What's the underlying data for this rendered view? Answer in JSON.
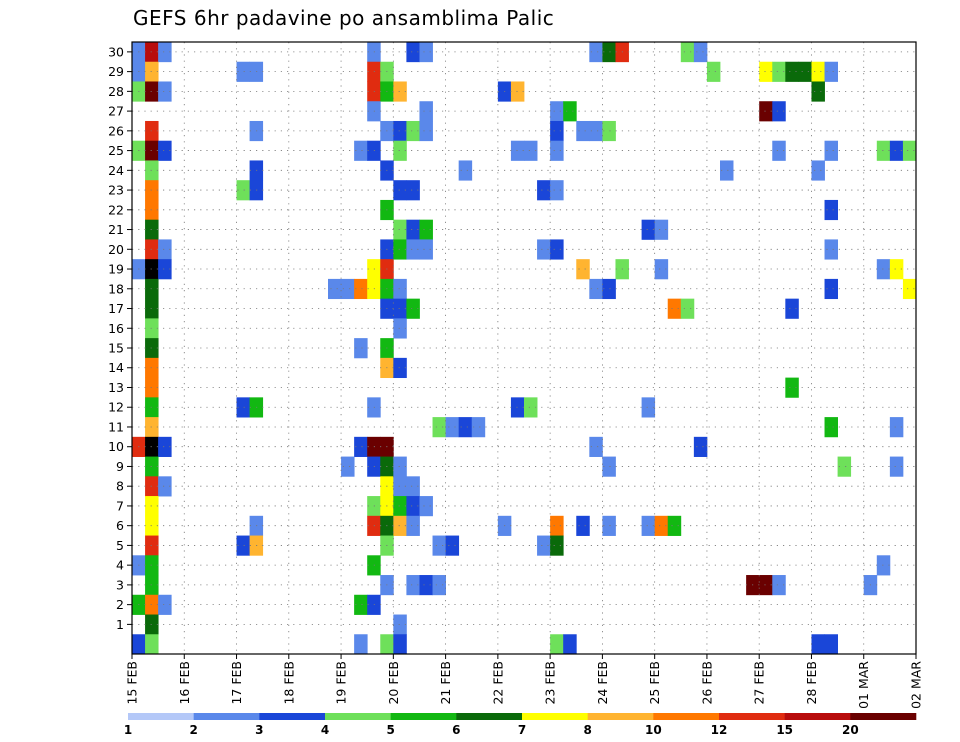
{
  "chart_data": {
    "type": "heatmap",
    "title": "GEFS 6hr padavine po ansamblima Palic",
    "xlabel": "",
    "ylabel": "",
    "y_ticks": [
      "1",
      "2",
      "3",
      "4",
      "5",
      "6",
      "7",
      "8",
      "9",
      "10",
      "11",
      "12",
      "13",
      "14",
      "15",
      "16",
      "17",
      "18",
      "19",
      "20",
      "21",
      "22",
      "23",
      "24",
      "25",
      "26",
      "27",
      "28",
      "29",
      "30"
    ],
    "x_ticks": [
      "15 FEB",
      "16 FEB",
      "17 FEB",
      "18 FEB",
      "19 FEB",
      "20 FEB",
      "21 FEB",
      "22 FEB",
      "23 FEB",
      "24 FEB",
      "25 FEB",
      "26 FEB",
      "27 FEB",
      "28 FEB",
      "01 MAR",
      "02 MAR"
    ],
    "xlim_steps": [
      0,
      60
    ],
    "ylim": [
      0,
      30
    ],
    "grid": true,
    "colorbar": {
      "levels": [
        "1",
        "2",
        "3",
        "4",
        "5",
        "6",
        "7",
        "8",
        "10",
        "12",
        "15",
        "20"
      ],
      "colors": [
        "#b4c8f8",
        "#5a88ea",
        "#1a46d8",
        "#6ee05a",
        "#12b812",
        "#0a6a0a",
        "#ffff00",
        "#ffb430",
        "#ff7800",
        "#e02c10",
        "#b80c0c",
        "#6a0000"
      ]
    },
    "cells": [
      [
        0,
        30,
        1
      ],
      [
        1,
        30,
        10
      ],
      [
        2,
        30,
        1
      ],
      [
        18,
        30,
        1
      ],
      [
        21,
        30,
        2
      ],
      [
        22,
        30,
        1
      ],
      [
        35,
        30,
        1
      ],
      [
        36,
        30,
        5
      ],
      [
        37,
        30,
        9
      ],
      [
        42,
        30,
        3
      ],
      [
        43,
        30,
        1
      ],
      [
        0,
        29,
        1
      ],
      [
        1,
        29,
        7
      ],
      [
        8,
        29,
        1
      ],
      [
        9,
        29,
        1
      ],
      [
        18,
        29,
        9
      ],
      [
        19,
        29,
        3
      ],
      [
        44,
        29,
        3
      ],
      [
        48,
        29,
        6
      ],
      [
        49,
        29,
        3
      ],
      [
        50,
        29,
        5
      ],
      [
        51,
        29,
        5
      ],
      [
        52,
        29,
        6
      ],
      [
        53,
        29,
        1
      ],
      [
        0,
        28,
        3
      ],
      [
        1,
        28,
        11
      ],
      [
        2,
        28,
        1
      ],
      [
        18,
        28,
        9
      ],
      [
        19,
        28,
        4
      ],
      [
        20,
        28,
        7
      ],
      [
        28,
        28,
        2
      ],
      [
        29,
        28,
        7
      ],
      [
        52,
        28,
        5
      ],
      [
        18,
        27,
        1
      ],
      [
        22,
        27,
        1
      ],
      [
        32,
        27,
        1
      ],
      [
        33,
        27,
        4
      ],
      [
        48,
        27,
        11
      ],
      [
        49,
        27,
        2
      ],
      [
        1,
        26,
        9
      ],
      [
        9,
        26,
        1
      ],
      [
        19,
        26,
        1
      ],
      [
        20,
        26,
        2
      ],
      [
        21,
        26,
        3
      ],
      [
        22,
        26,
        1
      ],
      [
        32,
        26,
        2
      ],
      [
        34,
        26,
        1
      ],
      [
        35,
        26,
        1
      ],
      [
        36,
        26,
        3
      ],
      [
        0,
        25,
        3
      ],
      [
        1,
        25,
        11
      ],
      [
        2,
        25,
        2
      ],
      [
        17,
        25,
        1
      ],
      [
        18,
        25,
        2
      ],
      [
        20,
        25,
        3
      ],
      [
        29,
        25,
        1
      ],
      [
        30,
        25,
        1
      ],
      [
        32,
        25,
        1
      ],
      [
        49,
        25,
        1
      ],
      [
        53,
        25,
        1
      ],
      [
        57,
        25,
        3
      ],
      [
        58,
        25,
        2
      ],
      [
        59,
        25,
        3
      ],
      [
        1,
        24,
        3
      ],
      [
        9,
        24,
        2
      ],
      [
        19,
        24,
        2
      ],
      [
        25,
        24,
        1
      ],
      [
        45,
        24,
        1
      ],
      [
        52,
        24,
        1
      ],
      [
        1,
        23,
        8
      ],
      [
        8,
        23,
        3
      ],
      [
        9,
        23,
        2
      ],
      [
        20,
        23,
        2
      ],
      [
        21,
        23,
        2
      ],
      [
        31,
        23,
        2
      ],
      [
        32,
        23,
        1
      ],
      [
        1,
        22,
        8
      ],
      [
        19,
        22,
        4
      ],
      [
        53,
        22,
        2
      ],
      [
        1,
        21,
        5
      ],
      [
        20,
        21,
        3
      ],
      [
        21,
        21,
        2
      ],
      [
        22,
        21,
        4
      ],
      [
        39,
        21,
        2
      ],
      [
        40,
        21,
        1
      ],
      [
        1,
        20,
        9
      ],
      [
        2,
        20,
        1
      ],
      [
        19,
        20,
        2
      ],
      [
        20,
        20,
        4
      ],
      [
        21,
        20,
        1
      ],
      [
        22,
        20,
        1
      ],
      [
        31,
        20,
        1
      ],
      [
        32,
        20,
        2
      ],
      [
        53,
        20,
        1
      ],
      [
        0,
        19,
        1
      ],
      [
        1,
        19,
        12
      ],
      [
        2,
        19,
        2
      ],
      [
        18,
        19,
        6
      ],
      [
        19,
        19,
        9
      ],
      [
        34,
        19,
        7
      ],
      [
        37,
        19,
        3
      ],
      [
        40,
        19,
        1
      ],
      [
        57,
        19,
        1
      ],
      [
        58,
        19,
        6
      ],
      [
        1,
        18,
        5
      ],
      [
        15,
        18,
        1
      ],
      [
        16,
        18,
        1
      ],
      [
        17,
        18,
        8
      ],
      [
        18,
        18,
        6
      ],
      [
        19,
        18,
        4
      ],
      [
        20,
        18,
        1
      ],
      [
        35,
        18,
        1
      ],
      [
        36,
        18,
        2
      ],
      [
        53,
        18,
        2
      ],
      [
        59,
        18,
        6
      ],
      [
        1,
        17,
        5
      ],
      [
        19,
        17,
        2
      ],
      [
        20,
        17,
        2
      ],
      [
        21,
        17,
        4
      ],
      [
        41,
        17,
        8
      ],
      [
        42,
        17,
        3
      ],
      [
        50,
        17,
        2
      ],
      [
        1,
        16,
        3
      ],
      [
        20,
        16,
        1
      ],
      [
        1,
        15,
        5
      ],
      [
        17,
        15,
        1
      ],
      [
        19,
        15,
        4
      ],
      [
        1,
        14,
        8
      ],
      [
        19,
        14,
        7
      ],
      [
        20,
        14,
        2
      ],
      [
        1,
        13,
        8
      ],
      [
        50,
        13,
        4
      ],
      [
        1,
        12,
        4
      ],
      [
        8,
        12,
        2
      ],
      [
        9,
        12,
        4
      ],
      [
        18,
        12,
        1
      ],
      [
        29,
        12,
        2
      ],
      [
        30,
        12,
        3
      ],
      [
        39,
        12,
        1
      ],
      [
        1,
        11,
        7
      ],
      [
        23,
        11,
        3
      ],
      [
        24,
        11,
        1
      ],
      [
        25,
        11,
        2
      ],
      [
        26,
        11,
        1
      ],
      [
        53,
        11,
        4
      ],
      [
        58,
        11,
        1
      ],
      [
        0,
        10,
        9
      ],
      [
        1,
        10,
        12
      ],
      [
        2,
        10,
        2
      ],
      [
        17,
        10,
        2
      ],
      [
        18,
        10,
        11
      ],
      [
        19,
        10,
        11
      ],
      [
        35,
        10,
        1
      ],
      [
        43,
        10,
        2
      ],
      [
        1,
        9,
        4
      ],
      [
        16,
        9,
        1
      ],
      [
        18,
        9,
        2
      ],
      [
        19,
        9,
        5
      ],
      [
        20,
        9,
        1
      ],
      [
        36,
        9,
        1
      ],
      [
        54,
        9,
        3
      ],
      [
        58,
        9,
        1
      ],
      [
        1,
        8,
        9
      ],
      [
        2,
        8,
        1
      ],
      [
        19,
        8,
        6
      ],
      [
        20,
        8,
        1
      ],
      [
        21,
        8,
        1
      ],
      [
        1,
        7,
        6
      ],
      [
        18,
        7,
        3
      ],
      [
        19,
        7,
        6
      ],
      [
        20,
        7,
        4
      ],
      [
        21,
        7,
        2
      ],
      [
        22,
        7,
        1
      ],
      [
        1,
        6,
        6
      ],
      [
        9,
        6,
        1
      ],
      [
        18,
        6,
        9
      ],
      [
        19,
        6,
        5
      ],
      [
        20,
        6,
        7
      ],
      [
        21,
        6,
        1
      ],
      [
        28,
        6,
        1
      ],
      [
        32,
        6,
        8
      ],
      [
        34,
        6,
        2
      ],
      [
        36,
        6,
        1
      ],
      [
        39,
        6,
        1
      ],
      [
        40,
        6,
        8
      ],
      [
        41,
        6,
        4
      ],
      [
        1,
        5,
        9
      ],
      [
        8,
        5,
        2
      ],
      [
        9,
        5,
        7
      ],
      [
        19,
        5,
        3
      ],
      [
        23,
        5,
        1
      ],
      [
        24,
        5,
        2
      ],
      [
        31,
        5,
        1
      ],
      [
        32,
        5,
        5
      ],
      [
        0,
        4,
        1
      ],
      [
        1,
        4,
        4
      ],
      [
        18,
        4,
        4
      ],
      [
        57,
        4,
        1
      ],
      [
        1,
        3,
        4
      ],
      [
        19,
        3,
        1
      ],
      [
        21,
        3,
        1
      ],
      [
        22,
        3,
        2
      ],
      [
        23,
        3,
        1
      ],
      [
        47,
        3,
        11
      ],
      [
        48,
        3,
        11
      ],
      [
        49,
        3,
        1
      ],
      [
        56,
        3,
        1
      ],
      [
        0,
        2,
        4
      ],
      [
        1,
        2,
        8
      ],
      [
        2,
        2,
        1
      ],
      [
        17,
        2,
        4
      ],
      [
        18,
        2,
        2
      ],
      [
        1,
        1,
        5
      ],
      [
        20,
        1,
        1
      ],
      [
        0,
        0,
        2
      ],
      [
        1,
        0,
        3
      ],
      [
        17,
        0,
        1
      ],
      [
        19,
        0,
        3
      ],
      [
        20,
        0,
        2
      ],
      [
        32,
        0,
        3
      ],
      [
        33,
        0,
        2
      ],
      [
        52,
        0,
        2
      ],
      [
        53,
        0,
        2
      ]
    ]
  }
}
